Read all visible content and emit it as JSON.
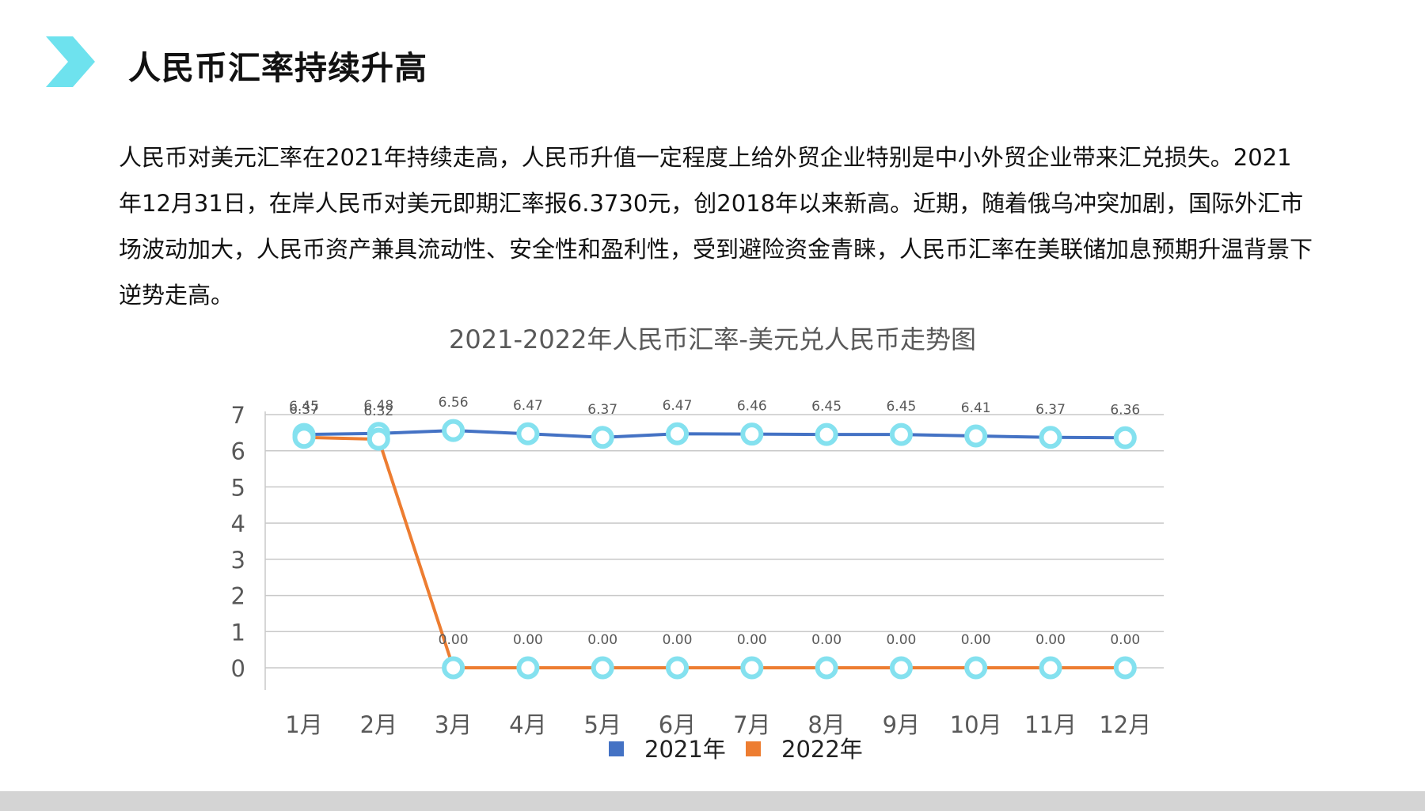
{
  "page": {
    "title": "人民币汇率持续升高",
    "intro": "人民币对美元汇率在2021年持续走高，人民币升值一定程度上给外贸企业特别是中小外贸企业带来汇兑损失。2021年12月31日，在岸人民币对美元即期汇率报6.3730元，创2018年以来新高。近期，随着俄乌冲突加剧，国际外汇市场波动加大，人民币资产兼具流动性、安全性和盈利性，受到避险资金青睐，人民币汇率在美联储加息预期升温背景下逆势走高。",
    "accent_color": "#6EE2EE",
    "icon": "chevron-right-icon"
  },
  "chart_data": {
    "type": "line",
    "title": "2021-2022年人民币汇率-美元兑人民币走势图",
    "categories": [
      "1月",
      "2月",
      "3月",
      "4月",
      "5月",
      "6月",
      "7月",
      "8月",
      "9月",
      "10月",
      "11月",
      "12月"
    ],
    "series": [
      {
        "name": "2021年",
        "color": "#4472C4",
        "values": [
          6.45,
          6.48,
          6.56,
          6.47,
          6.37,
          6.47,
          6.46,
          6.45,
          6.45,
          6.41,
          6.37,
          6.36
        ],
        "labels": [
          "6.45",
          "6.48",
          "6.56",
          "6.47",
          "6.37",
          "6.47",
          "6.46",
          "6.45",
          "6.45",
          "6.41",
          "6.37",
          "6.36"
        ]
      },
      {
        "name": "2022年",
        "color": "#ED7D31",
        "values": [
          6.37,
          6.32,
          0,
          0,
          0,
          0,
          0,
          0,
          0,
          0,
          0,
          0
        ],
        "labels": [
          "6.37",
          "6.32",
          "0.00",
          "0.00",
          "0.00",
          "0.00",
          "0.00",
          "0.00",
          "0.00",
          "0.00",
          "0.00",
          "0.00"
        ]
      }
    ],
    "yticks": [
      "0",
      "1",
      "2",
      "3",
      "4",
      "5",
      "6",
      "7"
    ],
    "ylim": [
      0,
      7
    ],
    "grid": true,
    "legend": "bottom",
    "marker_color": "#84E1EF"
  }
}
